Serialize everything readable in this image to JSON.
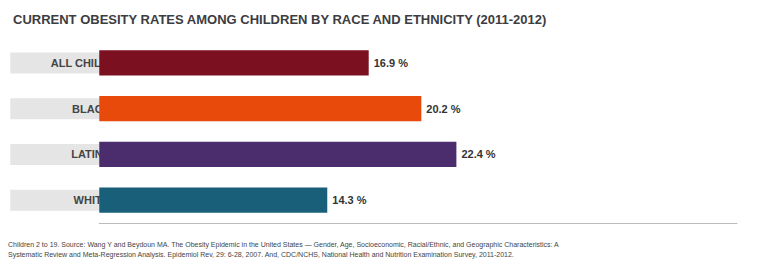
{
  "chart_data": {
    "type": "bar",
    "orientation": "horizontal",
    "title": "CURRENT OBESITY RATES AMONG CHILDREN BY RACE AND ETHNICITY (2011-2012)",
    "categories": [
      "ALL CHILDREN",
      "BLACK",
      "LATINO",
      "WHITE"
    ],
    "values": [
      16.9,
      20.2,
      22.4,
      14.3
    ],
    "value_labels": [
      "16.9 %",
      "20.2 %",
      "22.4 %",
      "14.3 %"
    ],
    "colors": [
      "#7b1020",
      "#e84a0c",
      "#4b2d6e",
      "#1a5f7a"
    ],
    "xlim": [
      0,
      40
    ],
    "grid": false,
    "data_labels": true,
    "tick_labels": "y",
    "annotations": [
      "Children 2 to 19. Source: Wang Y and Beydoun MA. The Obesity Epidemic in the United States — Gender, Age, Socioeconomic, Racial/Ethnic, and Geographic Characteristics: A\nSystematic Review and Meta-Regression Analysis. Epidemiol Rev, 29: 6-28, 2007. And, CDC/NCHS, National Health and Nutrition Examination Survey, 2011-2012."
    ]
  }
}
